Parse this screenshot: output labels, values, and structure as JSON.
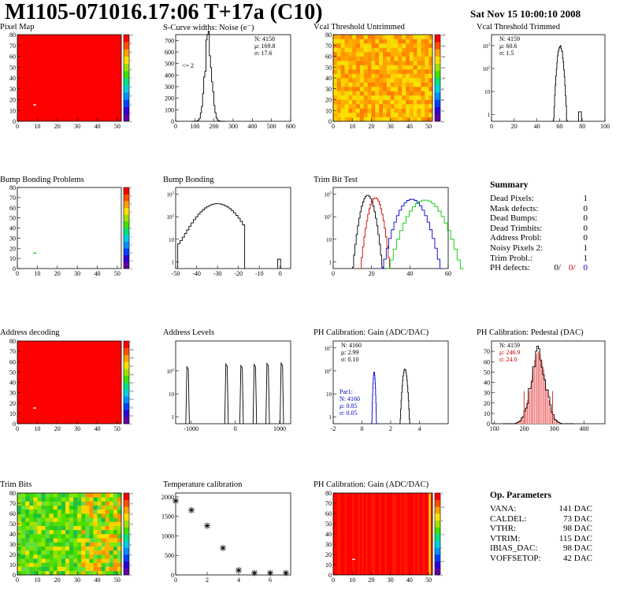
{
  "header": {
    "title": "M1105-071016.17:06 T+17a (C10)",
    "date": "Sat Nov 15 10:00:10 2008"
  },
  "chart_data": [
    {
      "id": "pixelmap",
      "type": "heatmap",
      "title": "Pixel Map",
      "colormap": "uniform",
      "base_color": "#ff0000",
      "xlim": [
        0,
        52
      ],
      "ylim": [
        0,
        80
      ],
      "xticks": [
        0,
        10,
        20,
        30,
        40,
        50
      ],
      "yticks": [
        0,
        10,
        20,
        30,
        40,
        50,
        60,
        70,
        80
      ],
      "colorbar": {
        "range": [
          0,
          10
        ],
        "ticks": [
          0,
          1,
          2,
          3,
          4,
          5,
          6,
          7,
          8,
          9,
          10
        ]
      },
      "dead_pixels": [
        {
          "x": 8,
          "y": 15,
          "color": "#ffffff"
        }
      ]
    },
    {
      "id": "noise",
      "type": "histogram",
      "title": "S-Curve widths: Noise (e⁻)",
      "xlim": [
        0,
        600
      ],
      "xticks": [
        0,
        100,
        200,
        300,
        400,
        500,
        600
      ],
      "ylim": [
        0,
        750
      ],
      "yticks": [
        0,
        100,
        200,
        300,
        400,
        500,
        600,
        700
      ],
      "peak": {
        "mean": 169.8,
        "sigma": 17.6,
        "height": 700
      },
      "stats": [
        "N: 4158",
        "μ: 169.8",
        "σ: 17.6"
      ],
      "note": "<= 2"
    },
    {
      "id": "vcal_untrimmed",
      "type": "heatmap",
      "title": "Vcal Threshold Untrimmed",
      "colormap": "rainbow",
      "xlim": [
        0,
        52
      ],
      "ylim": [
        0,
        80
      ],
      "xticks": [
        0,
        10,
        20,
        30,
        40,
        50
      ],
      "yticks": [
        0,
        10,
        20,
        30,
        40,
        50,
        60,
        70,
        80
      ],
      "colorbar": {
        "ticks": [
          60,
          70,
          80,
          90,
          100,
          110,
          120,
          130,
          140
        ]
      }
    },
    {
      "id": "vcal_trimmed",
      "type": "histogram",
      "title": "Vcal Threshold Trimmed",
      "log_y": true,
      "xlim": [
        0,
        100
      ],
      "xticks": [
        0,
        20,
        40,
        60,
        80,
        100
      ],
      "ylim": [
        0.5,
        3000
      ],
      "yticks": [
        1,
        10,
        100,
        1000
      ],
      "peak": {
        "mean": 60.6,
        "sigma": 1.5,
        "height": 1000
      },
      "outliers": [
        {
          "x": 78,
          "v": 1
        }
      ],
      "stats": [
        "N: 4159",
        "μ: 60.6",
        "σ: 1.5"
      ]
    },
    {
      "id": "bump_problems",
      "type": "heatmap",
      "title": "Bump Bonding Problems",
      "colormap": "empty",
      "xlim": [
        0,
        52
      ],
      "ylim": [
        0,
        80
      ],
      "xticks": [
        0,
        10,
        20,
        30,
        40,
        50
      ],
      "yticks": [
        0,
        10,
        20,
        30,
        40,
        50,
        60,
        70,
        80
      ],
      "colorbar": {
        "ticks": [
          -5,
          -4,
          -3,
          -2,
          -1,
          0,
          1,
          2,
          3,
          4,
          5
        ]
      },
      "marks": [
        {
          "x": 8,
          "y": 15,
          "color": "#00cc00"
        }
      ]
    },
    {
      "id": "bump_bonding",
      "type": "histogram",
      "title": "Bump Bonding",
      "log_y": true,
      "xlim": [
        -50,
        5
      ],
      "xticks": [
        -50,
        -40,
        -30,
        -20,
        -10,
        0
      ],
      "ylim": [
        0.5,
        2000
      ],
      "yticks": [
        1,
        10,
        100,
        1000
      ],
      "peak": {
        "mean": -30,
        "sigma": 6,
        "height": 380,
        "from": -49,
        "to": -17
      },
      "outliers": [
        {
          "x": -0.5,
          "v": 1
        }
      ]
    },
    {
      "id": "trimbit_test",
      "type": "histogram",
      "title": "Trim Bit Test",
      "log_y": true,
      "xlim": [
        0,
        60
      ],
      "xticks": [
        0,
        20,
        40,
        60
      ],
      "ylim": [
        0.5,
        2000
      ],
      "yticks": [
        1,
        10,
        100,
        1000
      ],
      "series": [
        {
          "color": "#000000",
          "mean": 18,
          "sigma": 2,
          "height": 900
        },
        {
          "color": "#cc0000",
          "mean": 22,
          "sigma": 2,
          "height": 700
        },
        {
          "color": "#0000cc",
          "mean": 41,
          "sigma": 4,
          "height": 600
        },
        {
          "color": "#00cc00",
          "mean": 48,
          "sigma": 5,
          "height": 550
        }
      ]
    },
    {
      "id": "address_decoding",
      "type": "heatmap",
      "title": "Address decoding",
      "colormap": "uniform",
      "base_color": "#ff0000",
      "xlim": [
        0,
        52
      ],
      "ylim": [
        0,
        80
      ],
      "xticks": [
        0,
        10,
        20,
        30,
        40,
        50
      ],
      "yticks": [
        0,
        10,
        20,
        30,
        40,
        50,
        60,
        70,
        80
      ],
      "colorbar": {
        "range": [
          0,
          1
        ],
        "ticks": [
          0,
          0.1,
          0.2,
          0.3,
          0.4,
          0.5,
          0.6,
          0.7,
          0.8,
          0.9,
          1
        ]
      },
      "dead_pixels": [
        {
          "x": 8,
          "y": 15,
          "color": "#ffffff"
        }
      ]
    },
    {
      "id": "address_levels",
      "type": "histogram",
      "title": "Address Levels",
      "log_y": true,
      "xlim": [
        -1350,
        1250
      ],
      "xticks": [
        -1000,
        0,
        1000
      ],
      "ylim": [
        0.5,
        2000
      ],
      "yticks": [
        1,
        10,
        100
      ],
      "peaks": [
        {
          "x": -1080,
          "v": 150
        },
        {
          "x": -200,
          "v": 200
        },
        {
          "x": 140,
          "v": 170
        },
        {
          "x": 440,
          "v": 190
        },
        {
          "x": 730,
          "v": 210
        },
        {
          "x": 1050,
          "v": 220
        }
      ]
    },
    {
      "id": "ph_gain",
      "type": "histogram",
      "title": "PH Calibration: Gain (ADC/DAC)",
      "log_y": true,
      "xlim": [
        -2,
        6
      ],
      "xticks": [
        -2,
        0,
        2,
        4
      ],
      "ylim": [
        0.5,
        2000
      ],
      "yticks": [
        1,
        10,
        100,
        1000
      ],
      "series": [
        {
          "color": "#000000",
          "mean": 2.99,
          "sigma": 0.1,
          "height": 120
        },
        {
          "color": "#0000cc",
          "mean": 0.85,
          "sigma": 0.05,
          "height": 90
        }
      ],
      "stats": [
        "N: 4160",
        "μ: 2.99",
        "σ: 0.10"
      ],
      "stats2": [
        "Par1:",
        "N: 4160",
        "μ: 0.85",
        "σ: 0.05"
      ]
    },
    {
      "id": "ph_pedestal",
      "type": "histogram",
      "title": "PH Calibration: Pedestal (DAC)",
      "xlim": [
        90,
        470
      ],
      "xticks": [
        100,
        200,
        300,
        400
      ],
      "ylim": [
        0,
        80
      ],
      "yticks": [
        0,
        10,
        20,
        30,
        40,
        50,
        60,
        70
      ],
      "peak": {
        "mean": 246.9,
        "sigma": 24,
        "height": 70
      },
      "fit_color": "#cc0000",
      "stats": [
        "N: 4159",
        "μ: 246.9",
        "σ: 24.0"
      ]
    },
    {
      "id": "trim_bits",
      "type": "heatmap",
      "title": "Trim Bits",
      "colormap": "rainbow_greenish",
      "xlim": [
        0,
        52
      ],
      "ylim": [
        0,
        80
      ],
      "xticks": [
        0,
        10,
        20,
        30,
        40,
        50
      ],
      "yticks": [
        0,
        10,
        20,
        30,
        40,
        50,
        60,
        70,
        80
      ],
      "colorbar": {
        "ticks": [
          0,
          2,
          4,
          6,
          8,
          10,
          12,
          14,
          16
        ]
      }
    },
    {
      "id": "temperature",
      "type": "scatter",
      "title": "Temperature calibration",
      "xlim": [
        0,
        7.3
      ],
      "xticks": [
        0,
        2,
        4,
        6
      ],
      "ylim": [
        0,
        2100
      ],
      "yticks": [
        0,
        500,
        1000,
        1500,
        2000
      ],
      "x": [
        0,
        1,
        2,
        3,
        4,
        5,
        6,
        7
      ],
      "y": [
        1900,
        1660,
        1260,
        690,
        120,
        50,
        50,
        50
      ]
    },
    {
      "id": "ph_gain_map",
      "type": "heatmap",
      "title": "PH Calibration: Gain (ADC/DAC)",
      "colormap": "uniform_red_stripes",
      "base_color": "#ff0000",
      "xlim": [
        0,
        52
      ],
      "ylim": [
        0,
        80
      ],
      "xticks": [
        0,
        10,
        20,
        30,
        40,
        50
      ],
      "yticks": [
        0,
        10,
        20,
        30,
        40,
        50,
        60,
        70,
        80
      ],
      "colorbar": {
        "ticks": [
          0,
          0.5,
          1,
          1.5,
          2,
          2.5,
          3
        ]
      },
      "marks": [
        {
          "x": 10,
          "y": 15,
          "color": "#ffffff"
        }
      ]
    }
  ],
  "summary": {
    "title": "Summary",
    "rows": [
      {
        "label": "Dead Pixels:",
        "value": "1"
      },
      {
        "label": "Mask defects:",
        "value": "0"
      },
      {
        "label": "Dead Bumps:",
        "value": "0"
      },
      {
        "label": "Dead Trimbits:",
        "value": "0"
      },
      {
        "label": "Address Probl:",
        "value": "0"
      },
      {
        "label": "Noisy Pixels 2:",
        "value": "1"
      },
      {
        "label": "Trim Probl.:",
        "value": "1"
      }
    ],
    "ph_defects": {
      "label": "PH defects:",
      "values": [
        "0/",
        "0/",
        "0"
      ],
      "colors": [
        "#000000",
        "#cc0000",
        "#0000cc"
      ]
    }
  },
  "op_params": {
    "title": "Op. Parameters",
    "rows": [
      {
        "label": "VANA:",
        "value": "141 DAC"
      },
      {
        "label": "CALDEL:",
        "value": "73 DAC"
      },
      {
        "label": "VTHR:",
        "value": "98 DAC"
      },
      {
        "label": "VTRIM:",
        "value": "115 DAC"
      },
      {
        "label": "IBIAS_DAC:",
        "value": "98 DAC"
      },
      {
        "label": "VOFFSETOP:",
        "value": "42 DAC"
      }
    ]
  }
}
